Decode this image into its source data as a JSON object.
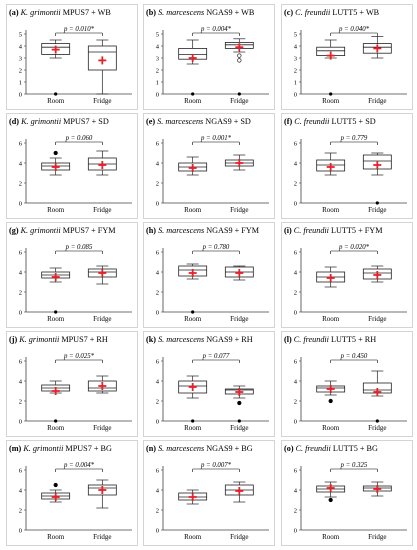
{
  "figure": {
    "panels": [
      {
        "letter": "(a)",
        "organism": "K. grimontii",
        "strain": "MPUS7",
        "medium": "+ WB",
        "pvalue": "p = 0.010*",
        "categories": [
          "Room",
          "Fridge"
        ],
        "ylim": [
          0,
          5
        ],
        "yticks": [
          0,
          1,
          2,
          3,
          4,
          5
        ],
        "boxes": [
          {
            "category": "Room",
            "whisker_low": 3.0,
            "q1": 3.3,
            "median": 3.9,
            "q3": 4.2,
            "whisker_high": 4.5,
            "mean": 3.7,
            "outliers": [
              0.0
            ]
          },
          {
            "category": "Fridge",
            "whisker_low": 0.0,
            "q1": 2.0,
            "median": 3.5,
            "q3": 4.0,
            "whisker_high": 4.5,
            "mean": 2.8,
            "outliers": []
          }
        ]
      },
      {
        "letter": "(b)",
        "organism": "S. marcescens",
        "strain": "NGAS9",
        "medium": "+ WB",
        "pvalue": "p = 0.004*",
        "categories": [
          "Room",
          "Fridge"
        ],
        "ylim": [
          0,
          5
        ],
        "yticks": [
          0,
          1,
          2,
          3,
          4,
          5
        ],
        "boxes": [
          {
            "category": "Room",
            "whisker_low": 2.5,
            "q1": 2.9,
            "median": 3.3,
            "q3": 3.8,
            "whisker_high": 4.5,
            "mean": 3.0,
            "outliers": [
              0.0
            ]
          },
          {
            "category": "Fridge",
            "whisker_low": 3.5,
            "q1": 3.8,
            "median": 4.1,
            "q3": 4.3,
            "whisker_high": 4.6,
            "mean": 3.9,
            "outliers": [
              3.2,
              2.8,
              0.0
            ]
          }
        ]
      },
      {
        "letter": "(c)",
        "organism": "C. freundii",
        "strain": "LUTT5",
        "medium": "+ WB",
        "pvalue": "p = 0.040*",
        "categories": [
          "Room",
          "Fridge"
        ],
        "ylim": [
          0,
          5
        ],
        "yticks": [
          0,
          1,
          2,
          3,
          4,
          5
        ],
        "boxes": [
          {
            "category": "Room",
            "whisker_low": 3.0,
            "q1": 3.2,
            "median": 3.6,
            "q3": 3.9,
            "whisker_high": 4.5,
            "mean": 3.2,
            "outliers": [
              0.0
            ]
          },
          {
            "category": "Fridge",
            "whisker_low": 3.0,
            "q1": 3.4,
            "median": 3.9,
            "q3": 4.2,
            "whisker_high": 4.8,
            "mean": 3.8,
            "outliers": []
          }
        ]
      },
      {
        "letter": "(d)",
        "organism": "K. grimontii",
        "strain": "MPUS7",
        "medium": "+ SD",
        "pvalue": "p = 0.060",
        "categories": [
          "Room",
          "Fridge"
        ],
        "ylim": [
          0,
          6
        ],
        "yticks": [
          0,
          2,
          4,
          6
        ],
        "boxes": [
          {
            "category": "Room",
            "whisker_low": 2.8,
            "q1": 3.3,
            "median": 3.7,
            "q3": 4.0,
            "whisker_high": 4.5,
            "mean": 3.6,
            "outliers": [
              5.0
            ]
          },
          {
            "category": "Fridge",
            "whisker_low": 2.8,
            "q1": 3.3,
            "median": 3.9,
            "q3": 4.5,
            "whisker_high": 5.2,
            "mean": 3.8,
            "outliers": []
          }
        ]
      },
      {
        "letter": "(e)",
        "organism": "S. marcescens",
        "strain": "NGAS9",
        "medium": "+ SD",
        "pvalue": "p = 0.001*",
        "categories": [
          "Room",
          "Fridge"
        ],
        "ylim": [
          0,
          6
        ],
        "yticks": [
          0,
          2,
          4,
          6
        ],
        "boxes": [
          {
            "category": "Room",
            "whisker_low": 2.8,
            "q1": 3.2,
            "median": 3.6,
            "q3": 4.0,
            "whisker_high": 4.6,
            "mean": 3.5,
            "outliers": []
          },
          {
            "category": "Fridge",
            "whisker_low": 3.3,
            "q1": 3.7,
            "median": 4.0,
            "q3": 4.3,
            "whisker_high": 4.8,
            "mean": 4.0,
            "outliers": []
          }
        ]
      },
      {
        "letter": "(f)",
        "organism": "C. freundii",
        "strain": "LUTT5",
        "medium": "+ SD",
        "pvalue": "p = 0.779",
        "categories": [
          "Room",
          "Fridge"
        ],
        "ylim": [
          0,
          6
        ],
        "yticks": [
          0,
          2,
          4,
          6
        ],
        "boxes": [
          {
            "category": "Room",
            "whisker_low": 2.8,
            "q1": 3.2,
            "median": 3.8,
            "q3": 4.3,
            "whisker_high": 5.0,
            "mean": 3.6,
            "outliers": []
          },
          {
            "category": "Fridge",
            "whisker_low": 2.8,
            "q1": 3.4,
            "median": 4.2,
            "q3": 4.8,
            "whisker_high": 5.0,
            "mean": 3.8,
            "outliers": [
              0.0
            ]
          }
        ]
      },
      {
        "letter": "(g)",
        "organism": "K. grimontii",
        "strain": "MPUS7",
        "medium": "+ FYM",
        "pvalue": "p = 0.085",
        "categories": [
          "Room",
          "Fridge"
        ],
        "ylim": [
          0,
          6
        ],
        "yticks": [
          0,
          2,
          4,
          6
        ],
        "boxes": [
          {
            "category": "Room",
            "whisker_low": 3.0,
            "q1": 3.4,
            "median": 3.7,
            "q3": 4.0,
            "whisker_high": 4.4,
            "mean": 3.5,
            "outliers": [
              0.0
            ]
          },
          {
            "category": "Fridge",
            "whisker_low": 2.8,
            "q1": 3.5,
            "median": 4.0,
            "q3": 4.3,
            "whisker_high": 4.6,
            "mean": 3.9,
            "outliers": []
          }
        ]
      },
      {
        "letter": "(h)",
        "organism": "S. marcescens",
        "strain": "NGAS9",
        "medium": "+ FYM",
        "pvalue": "p = 0.780",
        "categories": [
          "Room",
          "Fridge"
        ],
        "ylim": [
          0,
          6
        ],
        "yticks": [
          0,
          2,
          4,
          6
        ],
        "boxes": [
          {
            "category": "Room",
            "whisker_low": 3.3,
            "q1": 3.6,
            "median": 4.2,
            "q3": 4.6,
            "whisker_high": 4.8,
            "mean": 3.9,
            "outliers": [
              0.0
            ]
          },
          {
            "category": "Fridge",
            "whisker_low": 3.2,
            "q1": 3.5,
            "median": 4.0,
            "q3": 4.5,
            "whisker_high": 4.6,
            "mean": 3.9,
            "outliers": []
          }
        ]
      },
      {
        "letter": "(i)",
        "organism": "C. freundii",
        "strain": "LUTT5",
        "medium": "+ FYM",
        "pvalue": "p = 0.020*",
        "categories": [
          "Room",
          "Fridge"
        ],
        "ylim": [
          0,
          6
        ],
        "yticks": [
          0,
          2,
          4,
          6
        ],
        "boxes": [
          {
            "category": "Room",
            "whisker_low": 2.5,
            "q1": 3.0,
            "median": 3.5,
            "q3": 4.0,
            "whisker_high": 4.5,
            "mean": 3.4,
            "outliers": []
          },
          {
            "category": "Fridge",
            "whisker_low": 3.0,
            "q1": 3.3,
            "median": 3.9,
            "q3": 4.3,
            "whisker_high": 4.6,
            "mean": 3.7,
            "outliers": []
          }
        ]
      },
      {
        "letter": "(j)",
        "organism": "K. grimontii",
        "strain": "MPUS7",
        "medium": "+ RH",
        "pvalue": "p = 0.025*",
        "categories": [
          "Room",
          "Fridge"
        ],
        "ylim": [
          0,
          6
        ],
        "yticks": [
          0,
          2,
          4,
          6
        ],
        "boxes": [
          {
            "category": "Room",
            "whisker_low": 2.8,
            "q1": 3.0,
            "median": 3.3,
            "q3": 3.6,
            "whisker_high": 4.0,
            "mean": 3.0,
            "outliers": [
              0.0
            ]
          },
          {
            "category": "Fridge",
            "whisker_low": 2.8,
            "q1": 3.0,
            "median": 3.3,
            "q3": 4.0,
            "whisker_high": 4.5,
            "mean": 3.5,
            "outliers": []
          }
        ]
      },
      {
        "letter": "(k)",
        "organism": "S. marcescens",
        "strain": "NGAS9",
        "medium": "+ RH",
        "pvalue": "p = 0.077",
        "categories": [
          "Room",
          "Fridge"
        ],
        "ylim": [
          0,
          6
        ],
        "yticks": [
          0,
          2,
          4,
          6
        ],
        "boxes": [
          {
            "category": "Room",
            "whisker_low": 2.3,
            "q1": 2.8,
            "median": 3.5,
            "q3": 4.0,
            "whisker_high": 4.5,
            "mean": 3.4,
            "outliers": [
              0.0
            ]
          },
          {
            "category": "Fridge",
            "whisker_low": 2.3,
            "q1": 2.7,
            "median": 3.1,
            "q3": 3.2,
            "whisker_high": 3.5,
            "mean": 2.9,
            "outliers": [
              1.8,
              0.0
            ]
          }
        ]
      },
      {
        "letter": "(l)",
        "organism": "C. freundii",
        "strain": "LUTT5",
        "medium": "+ RH",
        "pvalue": "p = 0.450",
        "categories": [
          "Room",
          "Fridge"
        ],
        "ylim": [
          0,
          6
        ],
        "yticks": [
          0,
          2,
          4,
          6
        ],
        "boxes": [
          {
            "category": "Room",
            "whisker_low": 2.6,
            "q1": 2.9,
            "median": 3.3,
            "q3": 3.5,
            "whisker_high": 4.0,
            "mean": 3.2,
            "outliers": [
              2.0
            ]
          },
          {
            "category": "Fridge",
            "whisker_low": 2.5,
            "q1": 2.8,
            "median": 3.1,
            "q3": 3.8,
            "whisker_high": 5.0,
            "mean": 2.9,
            "outliers": [
              0.0
            ]
          }
        ]
      },
      {
        "letter": "(m)",
        "organism": "K. grimontii",
        "strain": "MPUS7",
        "medium": "+ BG",
        "pvalue": "p = 0.004*",
        "categories": [
          "Room",
          "Fridge"
        ],
        "ylim": [
          0,
          6
        ],
        "yticks": [
          0,
          2,
          4,
          6
        ],
        "boxes": [
          {
            "category": "Room",
            "whisker_low": 2.8,
            "q1": 3.1,
            "median": 3.4,
            "q3": 3.7,
            "whisker_high": 4.0,
            "mean": 3.3,
            "outliers": [
              4.5
            ]
          },
          {
            "category": "Fridge",
            "whisker_low": 2.2,
            "q1": 3.5,
            "median": 4.2,
            "q3": 4.5,
            "whisker_high": 5.0,
            "mean": 4.0,
            "outliers": []
          }
        ]
      },
      {
        "letter": "(n)",
        "organism": "S. marcescens",
        "strain": "NGAS9",
        "medium": "+ BG",
        "pvalue": "p = 0.007*",
        "categories": [
          "Room",
          "Fridge"
        ],
        "ylim": [
          0,
          6
        ],
        "yticks": [
          0,
          2,
          4,
          6
        ],
        "boxes": [
          {
            "category": "Room",
            "whisker_low": 2.6,
            "q1": 3.0,
            "median": 3.3,
            "q3": 3.7,
            "whisker_high": 4.0,
            "mean": 3.3,
            "outliers": []
          },
          {
            "category": "Fridge",
            "whisker_low": 2.8,
            "q1": 3.5,
            "median": 4.0,
            "q3": 4.5,
            "whisker_high": 4.8,
            "mean": 3.9,
            "outliers": []
          }
        ]
      },
      {
        "letter": "(o)",
        "organism": "C. freundii",
        "strain": "LUTT5",
        "medium": "+ BG",
        "pvalue": "p = 0.325",
        "categories": [
          "Room",
          "Fridge"
        ],
        "ylim": [
          0,
          6
        ],
        "yticks": [
          0,
          2,
          4,
          6
        ],
        "boxes": [
          {
            "category": "Room",
            "whisker_low": 3.3,
            "q1": 3.8,
            "median": 4.1,
            "q3": 4.4,
            "whisker_high": 4.8,
            "mean": 4.2,
            "outliers": [
              3.0
            ]
          },
          {
            "category": "Fridge",
            "whisker_low": 3.4,
            "q1": 3.9,
            "median": 4.2,
            "q3": 4.4,
            "whisker_high": 4.8,
            "mean": 4.1,
            "outliers": []
          }
        ]
      }
    ]
  },
  "chart_data": {
    "type": "box",
    "note_series": "15 small-multiple box plots, Room vs Fridge; red + marks the mean; boxes q1-median-q3 with whiskers and outliers",
    "grid": false
  },
  "colors": {
    "mean_marker": "#e8202a",
    "axis": "#404040",
    "box": "#222222"
  }
}
